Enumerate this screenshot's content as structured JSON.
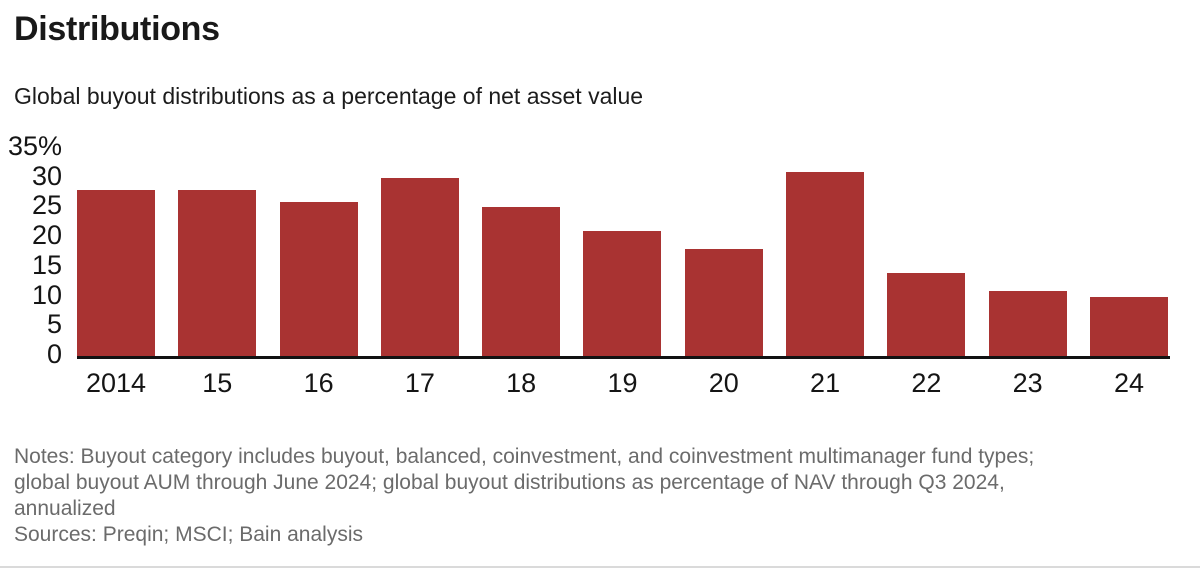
{
  "header": {
    "title": "Distributions",
    "subtitle": "Global buyout distributions as a percentage of net asset value"
  },
  "chart_data": {
    "type": "bar",
    "title": "Distributions",
    "subtitle": "Global buyout distributions as a percentage of net asset value",
    "categories": [
      "2014",
      "15",
      "16",
      "17",
      "18",
      "19",
      "20",
      "21",
      "22",
      "23",
      "24"
    ],
    "values": [
      28,
      28,
      26,
      30,
      25,
      21,
      18,
      31,
      14,
      11,
      10
    ],
    "unit": "%",
    "xlabel": "",
    "ylabel": "",
    "ylim": [
      0,
      35
    ],
    "y_ticks": [
      "35%",
      "30",
      "25",
      "20",
      "15",
      "10",
      "5",
      "0"
    ],
    "y_tick_values": [
      35,
      30,
      25,
      20,
      15,
      10,
      5,
      0
    ],
    "grid": false,
    "legend": "none",
    "bar_color": "#A93332",
    "axis_color": "#121212",
    "text_color": "#151515",
    "notes_color": "#6B6B6B"
  },
  "notes": {
    "lines": [
      "Notes: Buyout category includes buyout, balanced, coinvestment, and coinvestment multimanager fund types;",
      "global buyout AUM through June 2024; global buyout distributions as percentage of NAV through Q3 2024,",
      "annualized",
      "Sources: Preqin; MSCI; Bain analysis"
    ]
  }
}
